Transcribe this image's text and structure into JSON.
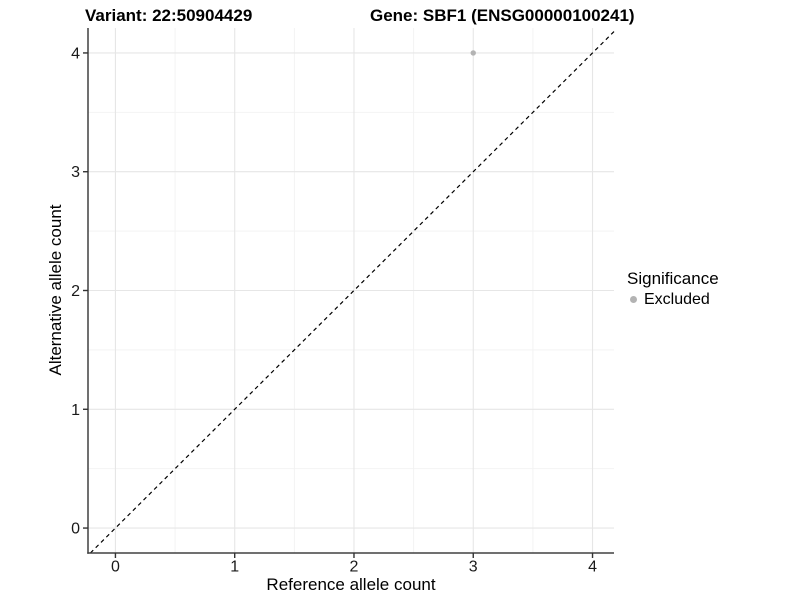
{
  "chart_data": {
    "type": "scatter",
    "title_left": "Variant: 22:50904429",
    "title_right": "Gene: SBF1 (ENSG00000100241)",
    "xlabel": "Reference allele count",
    "ylabel": "Alternative allele count",
    "xlim": [
      -0.23,
      4.18
    ],
    "ylim": [
      -0.21,
      4.21
    ],
    "xticks": [
      0,
      1,
      2,
      3,
      4
    ],
    "yticks": [
      0,
      1,
      2,
      3,
      4
    ],
    "minor_ticks_x": [
      0.5,
      1.5,
      2.5,
      3.5
    ],
    "minor_ticks_y": [
      0.5,
      1.5,
      2.5,
      3.5
    ],
    "grid": "major and minor, light gray on white",
    "series": [
      {
        "name": "Excluded",
        "points": [
          {
            "x": 3,
            "y": 4
          }
        ]
      }
    ],
    "identity_line": {
      "equation": "y = x",
      "style": "dashed",
      "color": "#000000"
    },
    "legend": {
      "title": "Significance",
      "position": "right",
      "items": [
        {
          "label": "Excluded",
          "color": "#b3b3b3"
        }
      ]
    },
    "colors": {
      "point": "#b3b3b3",
      "grid_major": "#e6e6e6",
      "grid_minor": "#f2f2f2",
      "axis_line": "#404040",
      "tick_mark": "#333333",
      "tick_label": "#1a1a1a",
      "identity": "#000000",
      "background": "#ffffff"
    }
  }
}
